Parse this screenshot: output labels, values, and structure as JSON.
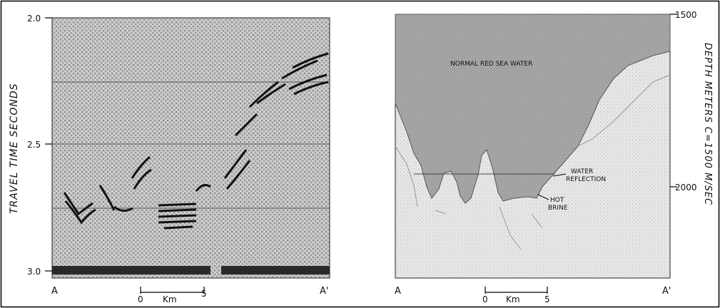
{
  "left_panel": {
    "y_axis_label": "TRAVEL TIME SECONDS",
    "y_ticks": [
      "2.0",
      "2.5",
      "3.0"
    ],
    "endpoint_left": "A",
    "endpoint_right": "A'",
    "scale_start": "0",
    "scale_unit": "Km",
    "scale_end": "5"
  },
  "right_panel": {
    "y_axis_label": "DEPTH METERS C=1500 M/SEC",
    "y_ticks": [
      "1500",
      "2000"
    ],
    "endpoint_left": "A",
    "endpoint_right": "A'",
    "scale_start": "0",
    "scale_unit": "Km",
    "scale_end": "5",
    "labels": {
      "normal_water": "NORMAL RED SEA WATER",
      "water_reflection_1": "WATER",
      "water_reflection_2": "REFLECTION",
      "hot_brine_1": "HOT",
      "hot_brine_2": "BRINE"
    }
  }
}
